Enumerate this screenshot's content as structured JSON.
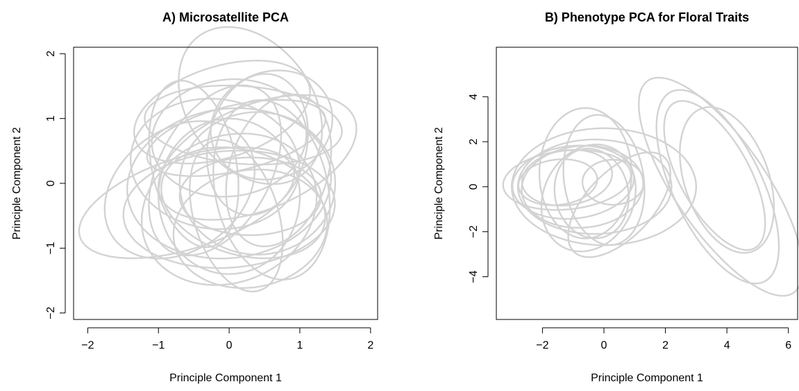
{
  "chart_data": [
    {
      "type": "scatter",
      "title": "A) Microsatellite PCA",
      "xlabel": "Principle Component 1",
      "ylabel": "Principle Component 2",
      "xlim": [
        -2.2,
        2.1
      ],
      "ylim": [
        -2.1,
        2.1
      ],
      "xticks": [
        -2,
        -1,
        0,
        1,
        2
      ],
      "yticks": [
        -2,
        -1,
        0,
        1,
        2
      ],
      "xtick_labels": [
        "−2",
        "−1",
        "0",
        "1",
        "2"
      ],
      "ytick_labels": [
        "−2",
        "−1",
        "0",
        "1",
        "2"
      ],
      "grid": false,
      "legend": "none",
      "series_color": "#d3d3d3",
      "series": [
        {
          "ellipse": [
            0.3,
            1.2,
            0.9,
            1.3,
            30
          ]
        },
        {
          "ellipse": [
            -0.1,
            1.1,
            1.3,
            0.7,
            20
          ]
        },
        {
          "ellipse": [
            0.1,
            0.7,
            1.3,
            0.5,
            15
          ]
        },
        {
          "ellipse": [
            0.6,
            0.9,
            0.9,
            0.8,
            40
          ]
        },
        {
          "ellipse": [
            0.0,
            0.7,
            1.1,
            0.9,
            10
          ]
        },
        {
          "ellipse": [
            0.4,
            0.6,
            0.7,
            1.1,
            -10
          ]
        },
        {
          "ellipse": [
            0.2,
            0.9,
            1.4,
            0.6,
            -5
          ]
        },
        {
          "ellipse": [
            0.4,
            0.4,
            1.5,
            0.8,
            25
          ]
        },
        {
          "ellipse": [
            -0.6,
            -0.3,
            1.6,
            0.7,
            20
          ]
        },
        {
          "ellipse": [
            0.0,
            -0.4,
            1.5,
            0.9,
            5
          ]
        },
        {
          "ellipse": [
            0.0,
            -0.2,
            1.0,
            1.2,
            0
          ]
        },
        {
          "ellipse": [
            0.3,
            -0.7,
            1.1,
            0.9,
            15
          ]
        },
        {
          "ellipse": [
            0.0,
            -0.4,
            1.3,
            1.1,
            35
          ]
        },
        {
          "ellipse": [
            -0.2,
            0.2,
            0.8,
            1.4,
            -25
          ]
        },
        {
          "ellipse": [
            0.1,
            -0.5,
            0.6,
            1.2,
            15
          ]
        },
        {
          "ellipse": [
            0.6,
            -0.1,
            0.8,
            1.4,
            10
          ]
        },
        {
          "ellipse": [
            -0.2,
            0.3,
            1.2,
            1.0,
            -10
          ]
        },
        {
          "ellipse": [
            0.2,
            -0.3,
            1.2,
            0.8,
            -20
          ]
        },
        {
          "ellipse": [
            0.4,
            0.0,
            1.1,
            1.1,
            30
          ]
        },
        {
          "ellipse": [
            -0.7,
            -0.1,
            1.2,
            0.9,
            45
          ]
        },
        {
          "ellipse": [
            0.3,
            -0.2,
            1.0,
            0.6,
            0
          ]
        },
        {
          "ellipse": [
            -0.5,
            0.3,
            0.6,
            1.3,
            10
          ]
        },
        {
          "ellipse": [
            0.7,
            0.2,
            0.7,
            1.2,
            -15
          ]
        },
        {
          "ellipse": [
            0.0,
            0.0,
            1.45,
            1.15,
            10
          ]
        }
      ]
    },
    {
      "type": "scatter",
      "title": "B) Phenotype PCA for Floral Traits",
      "xlabel": "Principle Component 1",
      "ylabel": "Principle Component 2",
      "xlim": [
        -3.5,
        6.3
      ],
      "ylim": [
        -5.9,
        6.2
      ],
      "xticks": [
        -2,
        0,
        2,
        4,
        6
      ],
      "yticks": [
        -4,
        -2,
        0,
        2,
        4
      ],
      "xtick_labels": [
        "−2",
        "0",
        "2",
        "4",
        "6"
      ],
      "ytick_labels": [
        "−4",
        "−2",
        "0",
        "2",
        "4"
      ],
      "grid": false,
      "legend": "none",
      "series_color": "#d3d3d3",
      "series": [
        {
          "ellipse": [
            -0.6,
            0.6,
            1.5,
            2.9,
            0
          ]
        },
        {
          "ellipse": [
            0.0,
            0.3,
            1.3,
            2.9,
            5
          ]
        },
        {
          "ellipse": [
            -0.7,
            0.0,
            2.0,
            1.8,
            20
          ]
        },
        {
          "ellipse": [
            -0.5,
            -0.5,
            1.5,
            2.4,
            -10
          ]
        },
        {
          "ellipse": [
            -1.0,
            0.2,
            2.0,
            1.6,
            15
          ]
        },
        {
          "ellipse": [
            -1.2,
            0.4,
            1.5,
            1.2,
            20
          ]
        },
        {
          "ellipse": [
            -1.2,
            0.3,
            2.1,
            1.3,
            10
          ]
        },
        {
          "ellipse": [
            -0.4,
            -0.3,
            1.2,
            2.0,
            5
          ]
        },
        {
          "ellipse": [
            0.0,
            0.0,
            3.0,
            2.6,
            0
          ]
        },
        {
          "ellipse": [
            -0.3,
            0.0,
            2.5,
            2.1,
            0
          ]
        },
        {
          "ellipse": [
            0.5,
            -0.8,
            1.2,
            2.6,
            -30
          ]
        },
        {
          "ellipse": [
            0.3,
            0.2,
            1.0,
            1.0,
            0
          ]
        },
        {
          "ellipse": [
            -1.5,
            0.2,
            1.3,
            1.0,
            15
          ]
        },
        {
          "ellipse": [
            3.8,
            0.0,
            1.6,
            5.3,
            25
          ]
        },
        {
          "ellipse": [
            3.7,
            0.0,
            1.5,
            4.5,
            18
          ]
        },
        {
          "ellipse": [
            3.6,
            0.5,
            1.2,
            3.5,
            20
          ]
        },
        {
          "ellipse": [
            4.0,
            0.3,
            1.4,
            3.3,
            12
          ]
        }
      ]
    }
  ]
}
